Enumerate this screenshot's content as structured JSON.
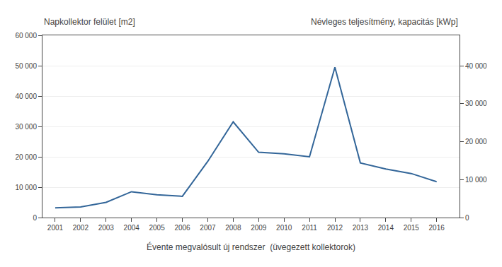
{
  "chart_data": {
    "type": "line",
    "xlabel": "Évente megvalósult új rendszer  (üvegezett kollektorok)",
    "ylabel": "Napkollektor felület [m2]",
    "y2label": "Névleges teljesítmény, kapacitás [kWp]",
    "x": [
      2001,
      2002,
      2003,
      2004,
      2005,
      2006,
      2007,
      2008,
      2009,
      2010,
      2011,
      2012,
      2013,
      2014,
      2015,
      2016
    ],
    "values": [
      3200,
      3500,
      5000,
      8500,
      7500,
      7000,
      18500,
      31500,
      21500,
      21000,
      20000,
      49500,
      18000,
      16000,
      14500,
      11800
    ],
    "color": "#336699",
    "xlim": [
      2000.5,
      2016.9
    ],
    "xticks": [
      2001,
      2002,
      2003,
      2004,
      2005,
      2006,
      2007,
      2008,
      2009,
      2010,
      2011,
      2012,
      2013,
      2014,
      2015,
      2016
    ],
    "ylim": [
      0,
      60000
    ],
    "yticks": [
      0,
      {
        "value": 10000,
        "label": "10 000"
      },
      {
        "value": 20000,
        "label": "20 000"
      },
      {
        "value": 30000,
        "label": "30 000"
      },
      {
        "value": 40000,
        "label": "40 000"
      },
      {
        "value": 50000,
        "label": "50 000"
      },
      {
        "value": 60000,
        "label": "60 000"
      }
    ],
    "y2lim": [
      0,
      48000
    ],
    "y2ticks": [
      0,
      {
        "value": 10000,
        "label": "10 000"
      },
      {
        "value": 20000,
        "label": "20 000"
      },
      {
        "value": 30000,
        "label": "30 000"
      },
      {
        "value": 40000,
        "label": "40 000"
      }
    ],
    "grid": true
  }
}
